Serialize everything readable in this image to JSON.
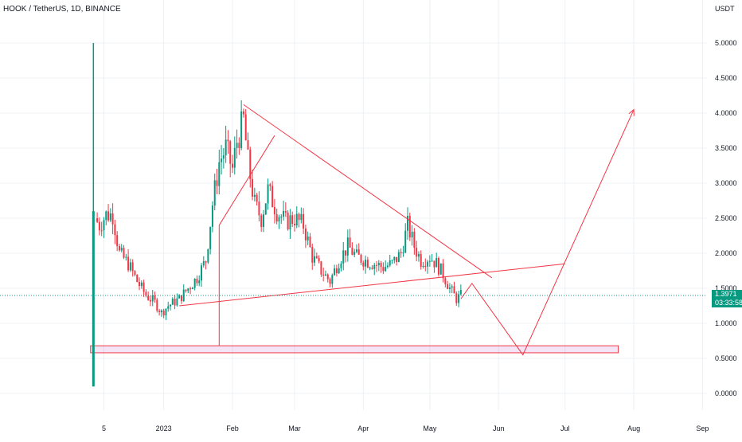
{
  "header": {
    "symbol_line": "HOOK / TetherUS, 1D, BINANCE"
  },
  "price_scale": {
    "currency": "USDT"
  },
  "current_price": {
    "value": "1.3971",
    "countdown": "03:33:58"
  },
  "colors": {
    "up": "#089981",
    "down": "#f23645",
    "drawing": "#f23645",
    "grid": "#eef0f3",
    "price_line": "#089981"
  },
  "chart_data": {
    "type": "candlestick",
    "title": "",
    "yaxis": {
      "ticks": [
        "0.0000",
        "0.5000",
        "1.0000",
        "1.5000",
        "2.0000",
        "2.5000",
        "3.0000",
        "3.5000",
        "4.0000",
        "4.5000",
        "5.0000"
      ],
      "range": [
        -0.1,
        5.6
      ]
    },
    "xaxis": {
      "tick_labels": [
        {
          "label": "5",
          "date": "2022-12-05"
        },
        {
          "label": "2023",
          "date": "2023-01-01"
        },
        {
          "label": "Feb",
          "date": "2023-02-01"
        },
        {
          "label": "Mar",
          "date": "2023-03-01"
        },
        {
          "label": "Apr",
          "date": "2023-04-01"
        },
        {
          "label": "May",
          "date": "2023-05-01"
        },
        {
          "label": "Jun",
          "date": "2023-06-01"
        },
        {
          "label": "Jul",
          "date": "2023-07-01"
        },
        {
          "label": "Aug",
          "date": "2023-08-01"
        },
        {
          "label": "Sep",
          "date": "2023-09-01"
        }
      ]
    },
    "grid": true,
    "price_path": [
      [
        "2022-12-01",
        2.5
      ],
      [
        "2022-12-03",
        2.4
      ],
      [
        "2022-12-06",
        2.55
      ],
      [
        "2022-12-09",
        2.55
      ],
      [
        "2022-12-12",
        2.0
      ],
      [
        "2022-12-16",
        1.85
      ],
      [
        "2022-12-20",
        1.6
      ],
      [
        "2022-12-24",
        1.4
      ],
      [
        "2022-12-28",
        1.3
      ],
      [
        "2022-12-31",
        1.15
      ],
      [
        "2023-01-03",
        1.25
      ],
      [
        "2023-01-08",
        1.35
      ],
      [
        "2023-01-12",
        1.5
      ],
      [
        "2023-01-16",
        1.65
      ],
      [
        "2023-01-20",
        1.9
      ],
      [
        "2023-01-23",
        2.7
      ],
      [
        "2023-01-26",
        3.3
      ],
      [
        "2023-01-29",
        3.5
      ],
      [
        "2023-02-01",
        3.2
      ],
      [
        "2023-02-03",
        3.6
      ],
      [
        "2023-02-06",
        3.9
      ],
      [
        "2023-02-08",
        3.3
      ],
      [
        "2023-02-11",
        2.7
      ],
      [
        "2023-02-14",
        2.5
      ],
      [
        "2023-02-17",
        2.9
      ],
      [
        "2023-02-21",
        2.6
      ],
      [
        "2023-02-25",
        2.45
      ],
      [
        "2023-03-01",
        2.5
      ],
      [
        "2023-03-05",
        2.4
      ],
      [
        "2023-03-09",
        1.95
      ],
      [
        "2023-03-13",
        1.75
      ],
      [
        "2023-03-17",
        1.6
      ],
      [
        "2023-03-21",
        1.9
      ],
      [
        "2023-03-25",
        2.1
      ],
      [
        "2023-03-29",
        1.95
      ],
      [
        "2023-04-02",
        1.9
      ],
      [
        "2023-04-06",
        1.85
      ],
      [
        "2023-04-10",
        1.8
      ],
      [
        "2023-04-14",
        1.85
      ],
      [
        "2023-04-18",
        2.0
      ],
      [
        "2023-04-21",
        2.4
      ],
      [
        "2023-04-24",
        2.1
      ],
      [
        "2023-04-27",
        1.9
      ],
      [
        "2023-05-01",
        1.95
      ],
      [
        "2023-05-04",
        1.85
      ],
      [
        "2023-05-07",
        1.7
      ],
      [
        "2023-05-10",
        1.5
      ],
      [
        "2023-05-13",
        1.35
      ],
      [
        "2023-05-15",
        1.3971
      ]
    ],
    "drawings": {
      "triangle_lines": [
        [
          [
            "2023-01-08",
            1.25
          ],
          [
            "2023-07-01",
            1.85
          ]
        ],
        [
          [
            "2023-02-06",
            4.12
          ],
          [
            "2023-05-29",
            1.65
          ]
        ]
      ],
      "rising_line": [
        [
          "2023-01-26",
          2.4
        ],
        [
          "2023-02-20",
          3.68
        ]
      ],
      "vertical_lines": [
        [
          [
            "2023-01-26",
            0.68
          ],
          [
            "2023-01-26",
            2.4
          ]
        ]
      ],
      "projection_path": [
        [
          "2023-05-15",
          1.35
        ],
        [
          "2023-05-20",
          1.57
        ],
        [
          "2023-06-12",
          0.55
        ],
        [
          "2023-08-01",
          4.05
        ]
      ],
      "support_zone": {
        "date_from": "2022-11-29",
        "date_to": "2023-07-25",
        "price_from": 0.58,
        "price_to": 0.68
      }
    },
    "current_price": 1.3971
  }
}
